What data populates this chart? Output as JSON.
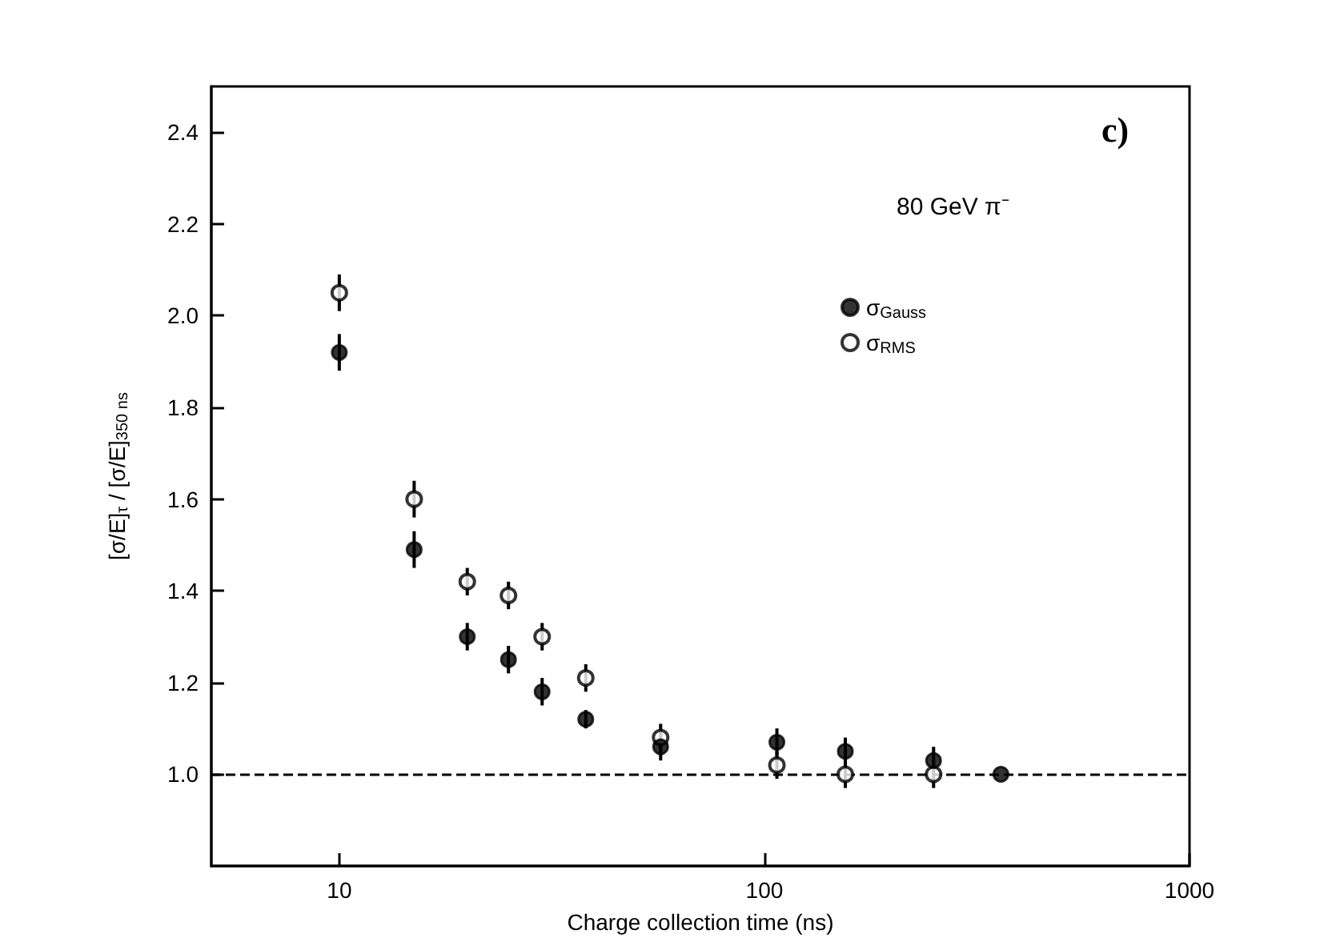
{
  "chart_data": {
    "type": "scatter",
    "xlabel": "Charge collection time (ns)",
    "ylabel": "[σ/E]$_{τ}$ / [σ/E]$_{350 ns}$",
    "annotations": [
      "c)",
      "80 GeV π⁻"
    ],
    "log": "x",
    "xlim": [
      5,
      1000
    ],
    "xticks": [
      10,
      100,
      1000
    ],
    "ylim": [
      0.8,
      2.5
    ],
    "yticks": [
      {
        "value": 1,
        "label": "1.0"
      },
      {
        "value": 1.2,
        "label": "1.2"
      },
      {
        "value": 1.4,
        "label": "1.4"
      },
      {
        "value": 1.6,
        "label": "1.6"
      },
      {
        "value": 1.8,
        "label": "1.8"
      },
      {
        "value": 2,
        "label": "2.0"
      },
      {
        "value": 2.2,
        "label": "2.2"
      },
      {
        "value": 2.4,
        "label": "2.4"
      }
    ],
    "grid": false,
    "legend": "top right",
    "marker": "circle",
    "series": [
      {
        "name": "σ$_{Gauss}$",
        "color": "#000000",
        "x": [
          10,
          15,
          20,
          25,
          30,
          38,
          57,
          107,
          155,
          250,
          360
        ],
        "values": [
          1.92,
          1.49,
          1.3,
          1.25,
          1.18,
          1.12,
          1.06,
          1.07,
          1.05,
          1.03,
          1.0
        ],
        "errors": [
          0.04,
          0.04,
          0.03,
          0.03,
          0.03,
          0.02,
          0.03,
          0.03,
          0.03,
          0.03,
          null
        ]
      },
      {
        "name": "σ$_{RMS}$",
        "color": "#000000",
        "x": [
          10,
          15,
          20,
          25,
          30,
          38,
          57,
          107,
          155,
          250
        ],
        "values": [
          2.05,
          1.6,
          1.42,
          1.39,
          1.3,
          1.21,
          1.08,
          1.02,
          1.0,
          1.0
        ],
        "errors": [
          0.04,
          0.04,
          0.03,
          0.03,
          0.03,
          0.03,
          0.03,
          0.03,
          0.03,
          0.03
        ]
      }
    ],
    "ref_lines": [
      {
        "axis": "y",
        "value": 1,
        "line_style": "dashed",
        "color": "#000000"
      }
    ]
  }
}
